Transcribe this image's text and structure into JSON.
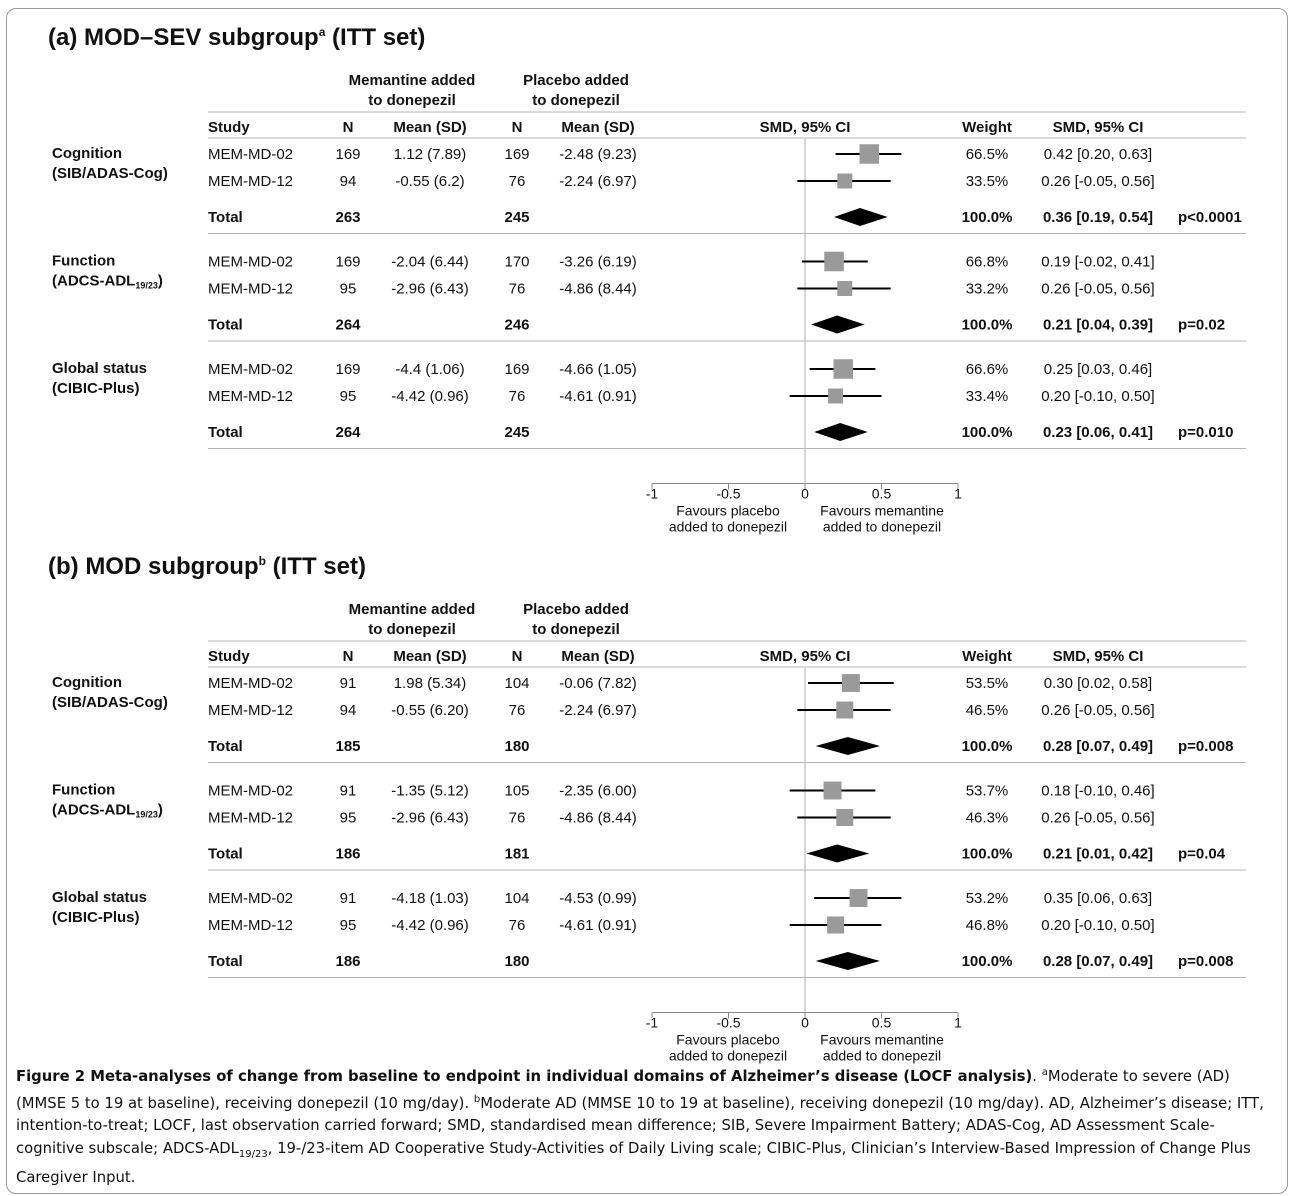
{
  "headers": {
    "mem_group_line1": "Memantine added",
    "mem_group_line2": "to donepezil",
    "pla_group_line1": "Placebo added",
    "pla_group_line2": "to donepezil",
    "study": "Study",
    "n": "N",
    "mean_sd": "Mean (SD)",
    "smd_ci_plot": "SMD, 95% CI",
    "weight": "Weight",
    "smd_ci": "SMD, 95% CI"
  },
  "axis": {
    "ticks": [
      "-1",
      "-0.5",
      "0",
      "0.5",
      "1"
    ],
    "left_label_line1": "Favours placebo",
    "left_label_line2": "added to donepezil",
    "right_label_line1": "Favours memantine",
    "right_label_line2": "added to donepezil"
  },
  "colors": {
    "box": "#9a9a9a",
    "diamond": "#000000",
    "rule": "#b4b4b4",
    "zero_line": "#c8c8c8"
  },
  "chart_data": [
    {
      "type": "forest",
      "title": "(a) MOD–SEV subgroup",
      "title_sup": "a",
      "title_suffix": " (ITT set)",
      "xlim": [
        -1,
        1
      ],
      "domains": [
        {
          "label1": "Cognition",
          "label2": "(SIB/ADAS-Cog)",
          "studies": [
            {
              "study": "MEM-MD-02",
              "n_mem": "169",
              "mean_mem": "1.12 (7.89)",
              "n_pla": "169",
              "mean_pla": "-2.48 (9.23)",
              "weight": "66.5%",
              "smd_text": "0.42 [0.20, 0.63]",
              "smd": 0.42,
              "lo": 0.2,
              "hi": 0.63
            },
            {
              "study": "MEM-MD-12",
              "n_mem": "94",
              "mean_mem": "-0.55 (6.2)",
              "n_pla": "76",
              "mean_pla": "-2.24 (6.97)",
              "weight": "33.5%",
              "smd_text": "0.26 [-0.05, 0.56]",
              "smd": 0.26,
              "lo": -0.05,
              "hi": 0.56
            }
          ],
          "total": {
            "label": "Total",
            "n_mem": "263",
            "n_pla": "245",
            "weight": "100.0%",
            "smd_text": "0.36 [0.19, 0.54]",
            "p": "p<0.0001",
            "smd": 0.36,
            "lo": 0.19,
            "hi": 0.54
          }
        },
        {
          "label1": "Function",
          "label2": "(ADCS-ADL",
          "label2_sub": "19/23",
          "label2_end": ")",
          "studies": [
            {
              "study": "MEM-MD-02",
              "n_mem": "169",
              "mean_mem": "-2.04 (6.44)",
              "n_pla": "170",
              "mean_pla": "-3.26 (6.19)",
              "weight": "66.8%",
              "smd_text": "0.19 [-0.02, 0.41]",
              "smd": 0.19,
              "lo": -0.02,
              "hi": 0.41
            },
            {
              "study": "MEM-MD-12",
              "n_mem": "95",
              "mean_mem": "-2.96 (6.43)",
              "n_pla": "76",
              "mean_pla": "-4.86 (8.44)",
              "weight": "33.2%",
              "smd_text": "0.26 [-0.05, 0.56]",
              "smd": 0.26,
              "lo": -0.05,
              "hi": 0.56
            }
          ],
          "total": {
            "label": "Total",
            "n_mem": "264",
            "n_pla": "246",
            "weight": "100.0%",
            "smd_text": "0.21 [0.04, 0.39]",
            "p": "p=0.02",
            "smd": 0.21,
            "lo": 0.04,
            "hi": 0.39
          }
        },
        {
          "label1": "Global status",
          "label2": "(CIBIC-Plus)",
          "studies": [
            {
              "study": "MEM-MD-02",
              "n_mem": "169",
              "mean_mem": "-4.4 (1.06)",
              "n_pla": "169",
              "mean_pla": "-4.66 (1.05)",
              "weight": "66.6%",
              "smd_text": "0.25 [0.03, 0.46]",
              "smd": 0.25,
              "lo": 0.03,
              "hi": 0.46
            },
            {
              "study": "MEM-MD-12",
              "n_mem": "95",
              "mean_mem": "-4.42 (0.96)",
              "n_pla": "76",
              "mean_pla": "-4.61 (0.91)",
              "weight": "33.4%",
              "smd_text": "0.20 [-0.10, 0.50]",
              "smd": 0.2,
              "lo": -0.1,
              "hi": 0.5
            }
          ],
          "total": {
            "label": "Total",
            "n_mem": "264",
            "n_pla": "245",
            "weight": "100.0%",
            "smd_text": "0.23 [0.06, 0.41]",
            "p": "p=0.010",
            "smd": 0.23,
            "lo": 0.06,
            "hi": 0.41
          }
        }
      ]
    },
    {
      "type": "forest",
      "title": "(b) MOD subgroup",
      "title_sup": "b",
      "title_suffix": " (ITT set)",
      "xlim": [
        -1,
        1
      ],
      "domains": [
        {
          "label1": "Cognition",
          "label2": "(SIB/ADAS-Cog)",
          "studies": [
            {
              "study": "MEM-MD-02",
              "n_mem": "91",
              "mean_mem": "1.98 (5.34)",
              "n_pla": "104",
              "mean_pla": "-0.06 (7.82)",
              "weight": "53.5%",
              "smd_text": "0.30 [0.02, 0.58]",
              "smd": 0.3,
              "lo": 0.02,
              "hi": 0.58
            },
            {
              "study": "MEM-MD-12",
              "n_mem": "94",
              "mean_mem": "-0.55 (6.20)",
              "n_pla": "76",
              "mean_pla": "-2.24 (6.97)",
              "weight": "46.5%",
              "smd_text": "0.26 [-0.05, 0.56]",
              "smd": 0.26,
              "lo": -0.05,
              "hi": 0.56
            }
          ],
          "total": {
            "label": "Total",
            "n_mem": "185",
            "n_pla": "180",
            "weight": "100.0%",
            "smd_text": "0.28 [0.07, 0.49]",
            "p": "p=0.008",
            "smd": 0.28,
            "lo": 0.07,
            "hi": 0.49
          }
        },
        {
          "label1": "Function",
          "label2": "(ADCS-ADL",
          "label2_sub": "19/23",
          "label2_end": ")",
          "studies": [
            {
              "study": "MEM-MD-02",
              "n_mem": "91",
              "mean_mem": "-1.35 (5.12)",
              "n_pla": "105",
              "mean_pla": "-2.35 (6.00)",
              "weight": "53.7%",
              "smd_text": "0.18 [-0.10, 0.46]",
              "smd": 0.18,
              "lo": -0.1,
              "hi": 0.46
            },
            {
              "study": "MEM-MD-12",
              "n_mem": "95",
              "mean_mem": "-2.96 (6.43)",
              "n_pla": "76",
              "mean_pla": "-4.86 (8.44)",
              "weight": "46.3%",
              "smd_text": "0.26 [-0.05, 0.56]",
              "smd": 0.26,
              "lo": -0.05,
              "hi": 0.56
            }
          ],
          "total": {
            "label": "Total",
            "n_mem": "186",
            "n_pla": "181",
            "weight": "100.0%",
            "smd_text": "0.21 [0.01, 0.42]",
            "p": "p=0.04",
            "smd": 0.21,
            "lo": 0.01,
            "hi": 0.42
          }
        },
        {
          "label1": "Global status",
          "label2": "(CIBIC-Plus)",
          "studies": [
            {
              "study": "MEM-MD-02",
              "n_mem": "91",
              "mean_mem": "-4.18 (1.03)",
              "n_pla": "104",
              "mean_pla": "-4.53 (0.99)",
              "weight": "53.2%",
              "smd_text": "0.35 [0.06, 0.63]",
              "smd": 0.35,
              "lo": 0.06,
              "hi": 0.63
            },
            {
              "study": "MEM-MD-12",
              "n_mem": "95",
              "mean_mem": "-4.42 (0.96)",
              "n_pla": "76",
              "mean_pla": "-4.61 (0.91)",
              "weight": "46.8%",
              "smd_text": "0.20 [-0.10, 0.50]",
              "smd": 0.2,
              "lo": -0.1,
              "hi": 0.5
            }
          ],
          "total": {
            "label": "Total",
            "n_mem": "186",
            "n_pla": "180",
            "weight": "100.0%",
            "smd_text": "0.28 [0.07, 0.49]",
            "p": "p=0.008",
            "smd": 0.28,
            "lo": 0.07,
            "hi": 0.49
          }
        }
      ]
    }
  ],
  "caption": {
    "title": "Figure 2 Meta-analyses of change from baseline to endpoint in individual domains of Alzheimer’s disease (LOCF analysis)",
    "sup_a": "a",
    "text_a": "Moderate to severe (AD) (MMSE 5 to 19 at baseline), receiving donepezil (10 mg/day). ",
    "sup_b": "b",
    "text_b": "Moderate AD (MMSE 10 to 19 at baseline), receiving donepezil (10 mg/day). AD, Alzheimer’s disease; ITT, intention-to-treat; LOCF, last observation carried forward; SMD, standardised mean difference; SIB, Severe Impairment Battery; ADAS-Cog, AD Assessment Scale-cognitive subscale; ADCS-ADL",
    "sub": "19/23",
    "text_c": ", 19-/23-item AD Cooperative Study-Activities of Daily Living scale; CIBIC-Plus, Clinician’s Interview-Based Impression of Change Plus Caregiver Input."
  }
}
